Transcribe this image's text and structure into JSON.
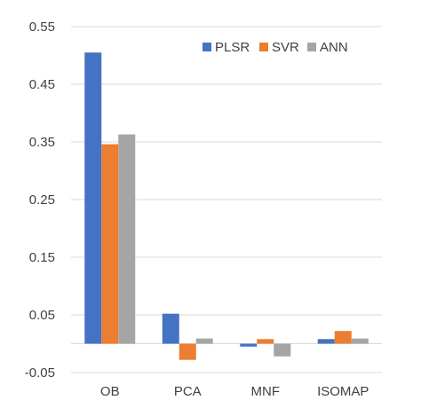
{
  "chart_data": {
    "type": "bar",
    "categories": [
      "OB",
      "PCA",
      "MNF",
      "ISOMAP"
    ],
    "series": [
      {
        "name": "PLSR",
        "values": [
          0.505,
          0.052,
          -0.005,
          0.008
        ],
        "color": "#4472C4"
      },
      {
        "name": "SVR",
        "values": [
          0.346,
          -0.028,
          0.008,
          0.022
        ],
        "color": "#ED7D31"
      },
      {
        "name": "ANN",
        "values": [
          0.363,
          0.009,
          -0.022,
          0.009
        ],
        "color": "#A5A5A5"
      }
    ],
    "y_ticks": [
      "0.55",
      "0.45",
      "0.35",
      "0.25",
      "0.15",
      "0.05",
      "-0.05"
    ],
    "ylim": [
      -0.05,
      0.55
    ],
    "grid": true,
    "legend_position": "top-right"
  }
}
